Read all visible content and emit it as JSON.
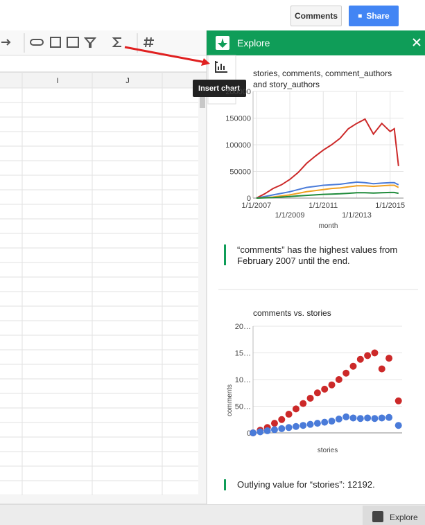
{
  "buttons": {
    "comments": "Comments",
    "share": "Share"
  },
  "columns": [
    "I",
    "J"
  ],
  "tooltip": "Insert chart",
  "explore": {
    "title": "Explore",
    "cards": [
      {
        "chart": {
          "type": "line",
          "title": "stories, comments, comment_authors and story_authors",
          "x_label": "month",
          "x": [
            2007,
            2007.5,
            2008,
            2008.5,
            2009,
            2009.5,
            2010,
            2010.5,
            2011,
            2011.5,
            2012,
            2012.5,
            2013,
            2013.5,
            2014,
            2014.5,
            2015,
            2015.25,
            2015.5
          ],
          "series": [
            {
              "color": "#cc2929",
              "values": [
                0,
                8000,
                18000,
                25000,
                35000,
                48000,
                65000,
                78000,
                90000,
                100000,
                112000,
                130000,
                140000,
                148000,
                120000,
                140000,
                125000,
                130000,
                60000
              ]
            },
            {
              "color": "#4a7bd9",
              "values": [
                0,
                3000,
                6000,
                9000,
                12000,
                16000,
                20000,
                22000,
                24000,
                25000,
                26000,
                28000,
                30000,
                29000,
                27000,
                28000,
                29000,
                29000,
                25000
              ]
            },
            {
              "color": "#f0a020",
              "values": [
                0,
                1000,
                2000,
                4000,
                6000,
                9000,
                12000,
                14000,
                16000,
                18000,
                19000,
                21000,
                23000,
                23000,
                22000,
                23000,
                24000,
                24000,
                20000
              ]
            },
            {
              "color": "#1e8a3a",
              "values": [
                0,
                500,
                1000,
                2000,
                3000,
                4000,
                5000,
                6000,
                7000,
                7500,
                8000,
                9000,
                10000,
                10000,
                9500,
                10000,
                10500,
                10500,
                9000
              ]
            }
          ],
          "xlim": [
            2006.8,
            2015.8
          ],
          "xticks": [
            {
              "value": 2007,
              "label": "1/1/2007"
            },
            {
              "value": 2009,
              "label": "1/1/2009"
            },
            {
              "value": 2011,
              "label": "1/1/2011"
            },
            {
              "value": 2013,
              "label": "1/1/2013"
            },
            {
              "value": 2015,
              "label": "1/1/2015"
            }
          ],
          "ylim": [
            0,
            200000
          ],
          "yticks": [
            0,
            50000,
            100000,
            150000,
            200000
          ],
          "grid": true
        },
        "insight": "“comments” has the highest values from February 2007 until the end."
      },
      {
        "chart": {
          "type": "scatter",
          "title": "comments vs. stories",
          "x_label": "stories",
          "y_label": "comments",
          "x": [
            0,
            600,
            1200,
            1800,
            2400,
            3000,
            3600,
            4200,
            4800,
            5400,
            6000,
            6600,
            7200,
            7800,
            8400,
            9000,
            9600,
            10200,
            10800,
            11400,
            12192
          ],
          "series": [
            {
              "color": "#cc2929",
              "values": [
                0,
                5000,
                10000,
                18000,
                25000,
                35000,
                45000,
                55000,
                65000,
                75000,
                82000,
                90000,
                100000,
                112000,
                125000,
                138000,
                145000,
                150000,
                120000,
                140000,
                60000
              ]
            },
            {
              "color": "#4a7bd9",
              "values": [
                0,
                2000,
                4000,
                6000,
                8000,
                10000,
                12000,
                14000,
                16000,
                18000,
                20000,
                22000,
                26000,
                30000,
                28000,
                27000,
                28000,
                27000,
                28000,
                29000,
                14000
              ]
            }
          ],
          "xlim": [
            0,
            12500
          ],
          "ylim": [
            0,
            200000
          ],
          "yticks": [
            0,
            {
              "value": 50000,
              "label": "50…"
            },
            {
              "value": 100000,
              "label": "10…"
            },
            {
              "value": 150000,
              "label": "15…"
            },
            {
              "value": 200000,
              "label": "20…"
            }
          ],
          "grid": true
        },
        "insight": "Outlying value for “stories”: 12192."
      }
    ]
  },
  "footer": {
    "explore_button": "Explore"
  }
}
